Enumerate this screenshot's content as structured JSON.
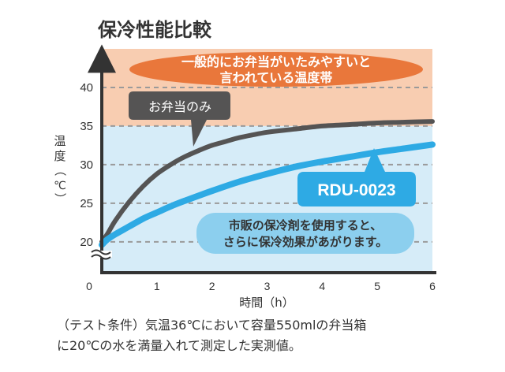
{
  "chart_data": {
    "type": "line",
    "title": "保冷性能比較",
    "xlabel": "時間（h）",
    "ylabel": [
      "温",
      "度",
      "（",
      "℃",
      "）"
    ],
    "origin_label": "0",
    "x_ticks": [
      1,
      2,
      3,
      4,
      5,
      6
    ],
    "y_ticks": [
      20,
      25,
      30,
      35,
      40
    ],
    "xlim": [
      0,
      6
    ],
    "ylim": [
      16,
      45
    ],
    "axis_break": true,
    "grid": "dashed-horizontal",
    "band": {
      "label_lines": [
        "一般的にお弁当がいたみやすいと",
        "言われている温度帯"
      ],
      "y_from": 35,
      "color": "#f8cdb1",
      "label_color": "#e9773b"
    },
    "below_band_color": "#d6ecf8",
    "series": [
      {
        "name": "お弁当のみ",
        "color": "#555454",
        "x": [
          0.0,
          0.1,
          0.25,
          0.5,
          0.75,
          1.0,
          1.25,
          1.5,
          1.75,
          2.0,
          2.25,
          2.5,
          3.0,
          3.5,
          4.0,
          4.5,
          5.0,
          5.5,
          6.0
        ],
        "y": [
          20.0,
          21.0,
          22.8,
          25.2,
          27.2,
          28.8,
          30.0,
          31.0,
          31.8,
          32.5,
          33.0,
          33.5,
          34.2,
          34.6,
          35.0,
          35.2,
          35.4,
          35.5,
          35.6
        ]
      },
      {
        "name": "RDU-0023",
        "color": "#2eaae4",
        "x": [
          0.0,
          0.1,
          0.25,
          0.5,
          0.75,
          1.0,
          1.25,
          1.5,
          2.0,
          2.5,
          3.0,
          3.5,
          4.0,
          4.5,
          5.0,
          5.5,
          6.0
        ],
        "y": [
          19.6,
          20.3,
          21.0,
          22.0,
          23.0,
          23.8,
          24.6,
          25.3,
          26.6,
          27.8,
          28.8,
          29.7,
          30.4,
          31.0,
          31.6,
          32.1,
          32.6
        ]
      }
    ],
    "annotation": {
      "lines": [
        "市販の保冷剤を使用すると、",
        "さらに保冷効果があがります。"
      ],
      "color": "#8ccfee"
    }
  },
  "footnote": [
    "（テスト条件）気温36℃において容量550mlの弁当箱",
    "に20℃の水を満量入れて測定した実測値。"
  ]
}
